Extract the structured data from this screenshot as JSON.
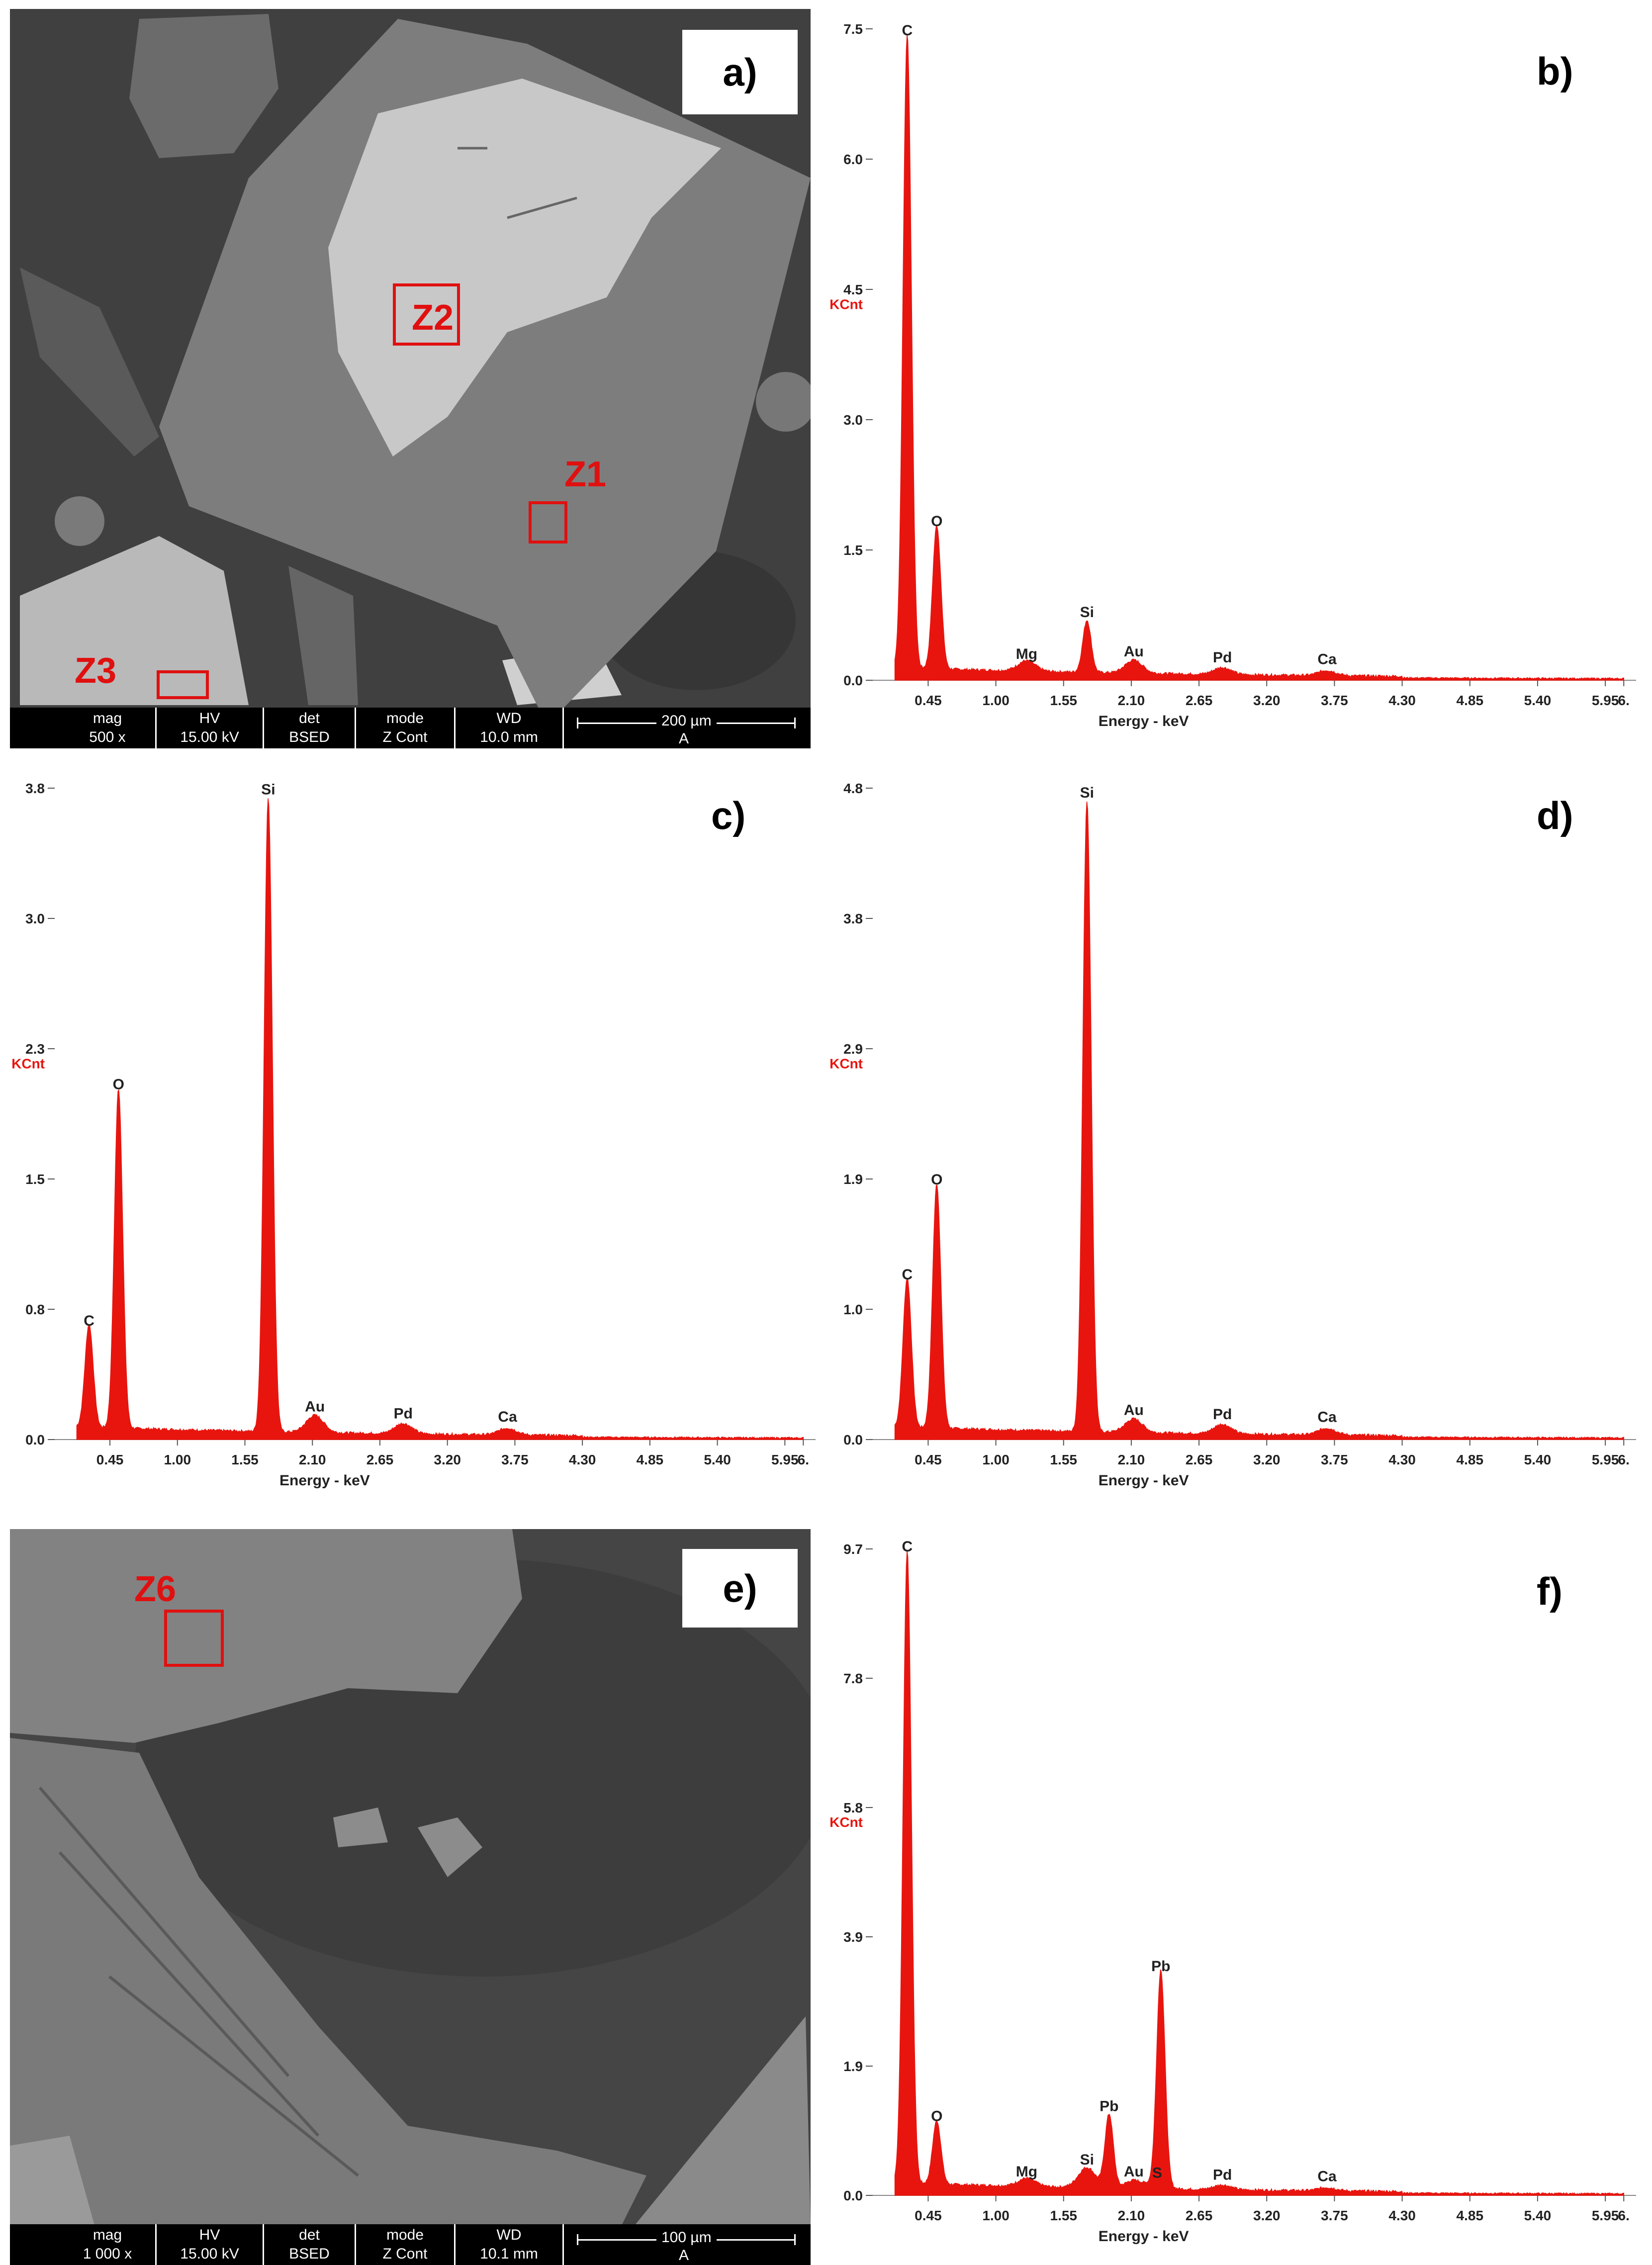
{
  "panels": {
    "a": {
      "label": "a)",
      "zones": [
        "Z2",
        "Z1",
        "Z3"
      ],
      "databar": {
        "headers": [
          "mag",
          "HV",
          "det",
          "mode",
          "WD"
        ],
        "values": [
          "500 x",
          "15.00 kV",
          "BSED",
          "Z Cont",
          "10.0 mm"
        ],
        "scale_text": "200 µm",
        "scale_sub": "A"
      }
    },
    "b": {
      "label": "b)"
    },
    "c": {
      "label": "c)"
    },
    "d": {
      "label": "d)"
    },
    "e": {
      "label": "e)",
      "zones": [
        "Z6"
      ],
      "databar": {
        "headers": [
          "mag",
          "HV",
          "det",
          "mode",
          "WD"
        ],
        "values": [
          "1 000 x",
          "15.00 kV",
          "BSED",
          "Z Cont",
          "10.1 mm"
        ],
        "scale_text": "100 µm",
        "scale_sub": "A"
      }
    },
    "f": {
      "label": "f)"
    }
  },
  "chart_data": [
    {
      "panel": "b",
      "type": "line",
      "color": "#e8150f",
      "xlabel": "Energy - keV",
      "ylabel": "KCnt",
      "xticks": [
        "0.45",
        "1.00",
        "1.55",
        "2.10",
        "2.65",
        "3.20",
        "3.75",
        "4.30",
        "4.85",
        "5.40",
        "5.95",
        "6."
      ],
      "yticks": [
        "0.0",
        "1.5",
        "3.0",
        "4.5",
        "6.0",
        "7.5"
      ],
      "ylim": [
        0,
        7.5
      ],
      "xlim": [
        0.0,
        6.2
      ],
      "peaks": [
        {
          "label": "C",
          "energy": 0.28,
          "height": 7.3
        },
        {
          "label": "O",
          "energy": 0.52,
          "height": 1.65
        },
        {
          "label": "Mg",
          "energy": 1.25,
          "height": 0.12
        },
        {
          "label": "Si",
          "energy": 1.74,
          "height": 0.6
        },
        {
          "label": "Au",
          "energy": 2.12,
          "height": 0.15
        },
        {
          "label": "Pd",
          "energy": 2.84,
          "height": 0.08
        },
        {
          "label": "Ca",
          "energy": 3.69,
          "height": 0.06
        }
      ]
    },
    {
      "panel": "c",
      "type": "line",
      "color": "#e8150f",
      "xlabel": "Energy - keV",
      "ylabel": "KCnt",
      "xticks": [
        "0.45",
        "1.00",
        "1.55",
        "2.10",
        "2.65",
        "3.20",
        "3.75",
        "4.30",
        "4.85",
        "5.40",
        "5.95",
        "6."
      ],
      "yticks": [
        "0.0",
        "0.8",
        "1.5",
        "2.3",
        "3.0",
        "3.8"
      ],
      "ylim": [
        0,
        3.8
      ],
      "xlim": [
        0.0,
        6.2
      ],
      "peaks": [
        {
          "label": "C",
          "energy": 0.28,
          "height": 0.6
        },
        {
          "label": "O",
          "energy": 0.52,
          "height": 1.98
        },
        {
          "label": "Si",
          "energy": 1.74,
          "height": 3.7
        },
        {
          "label": "Au",
          "energy": 2.12,
          "height": 0.1
        },
        {
          "label": "Pd",
          "energy": 2.84,
          "height": 0.06
        },
        {
          "label": "Ca",
          "energy": 3.69,
          "height": 0.04
        }
      ]
    },
    {
      "panel": "d",
      "type": "line",
      "color": "#e8150f",
      "xlabel": "Energy - keV",
      "ylabel": "KCnt",
      "xticks": [
        "0.45",
        "1.00",
        "1.55",
        "2.10",
        "2.65",
        "3.20",
        "3.75",
        "4.30",
        "4.85",
        "5.40",
        "5.95",
        "6."
      ],
      "yticks": [
        "0.0",
        "1.0",
        "1.9",
        "2.9",
        "3.8",
        "4.8"
      ],
      "ylim": [
        0,
        4.8
      ],
      "xlim": [
        0.0,
        6.2
      ],
      "peaks": [
        {
          "label": "C",
          "energy": 0.28,
          "height": 1.1
        },
        {
          "label": "O",
          "energy": 0.52,
          "height": 1.8
        },
        {
          "label": "Si",
          "energy": 1.74,
          "height": 4.65
        },
        {
          "label": "Au",
          "energy": 2.12,
          "height": 0.1
        },
        {
          "label": "Pd",
          "energy": 2.84,
          "height": 0.07
        },
        {
          "label": "Ca",
          "energy": 3.69,
          "height": 0.05
        }
      ]
    },
    {
      "panel": "f",
      "type": "line",
      "color": "#e8150f",
      "xlabel": "Energy - keV",
      "ylabel": "KCnt",
      "xticks": [
        "0.45",
        "1.00",
        "1.55",
        "2.10",
        "2.65",
        "3.20",
        "3.75",
        "4.30",
        "4.85",
        "5.40",
        "5.95",
        "6."
      ],
      "yticks": [
        "0.0",
        "1.9",
        "3.9",
        "5.8",
        "7.8",
        "9.7"
      ],
      "ylim": [
        0,
        9.7
      ],
      "xlim": [
        0.0,
        6.2
      ],
      "peaks": [
        {
          "label": "C",
          "energy": 0.28,
          "height": 9.5
        },
        {
          "label": "O",
          "energy": 0.52,
          "height": 0.95
        },
        {
          "label": "Mg",
          "energy": 1.25,
          "height": 0.12
        },
        {
          "label": "Si",
          "energy": 1.74,
          "height": 0.3
        },
        {
          "label": "Pb",
          "energy": 1.92,
          "height": 1.1
        },
        {
          "label": "Au",
          "energy": 2.12,
          "height": 0.12
        },
        {
          "label": "S",
          "energy": 2.31,
          "height": 0.1
        },
        {
          "label": "Pb",
          "energy": 2.34,
          "height": 3.2
        },
        {
          "label": "Pd",
          "energy": 2.84,
          "height": 0.07
        },
        {
          "label": "Ca",
          "energy": 3.69,
          "height": 0.05
        }
      ]
    }
  ]
}
